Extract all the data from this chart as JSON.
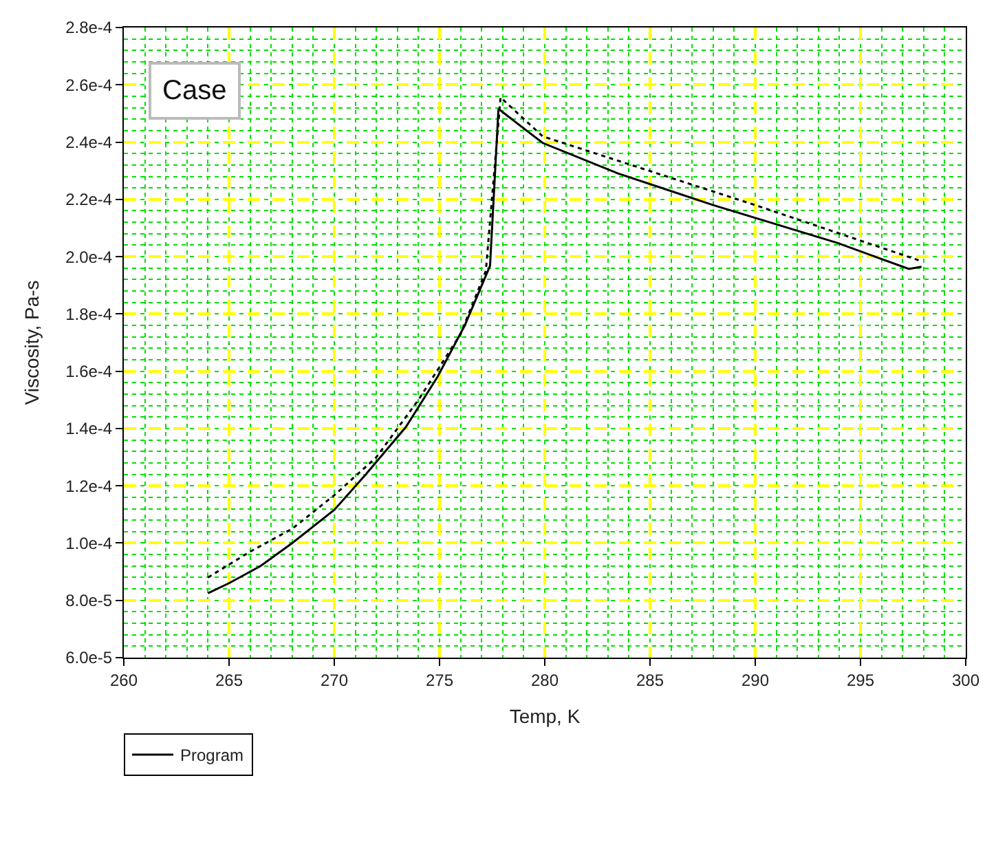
{
  "chart_data": {
    "type": "line",
    "xlabel": "Temp, K",
    "ylabel": "Viscosity, Pa-s",
    "annotations": [
      "Case"
    ],
    "xlim": [
      260,
      300
    ],
    "xticks": [
      260,
      265,
      270,
      275,
      280,
      285,
      290,
      295,
      300
    ],
    "ylim": [
      6e-05,
      0.00028
    ],
    "yticks": [
      {
        "value": 6e-05,
        "label": "6.0e-5"
      },
      {
        "value": 8e-05,
        "label": "8.0e-5"
      },
      {
        "value": 0.0001,
        "label": "1.0e-4"
      },
      {
        "value": 0.00012,
        "label": "1.2e-4"
      },
      {
        "value": 0.00014,
        "label": "1.4e-4"
      },
      {
        "value": 0.00016,
        "label": "1.6e-4"
      },
      {
        "value": 0.00018,
        "label": "1.8e-4"
      },
      {
        "value": 0.0002,
        "label": "2.0e-4"
      },
      {
        "value": 0.00022,
        "label": "2.2e-4"
      },
      {
        "value": 0.00024,
        "label": "2.4e-4"
      },
      {
        "value": 0.00026,
        "label": "2.6e-4"
      },
      {
        "value": 0.00028,
        "label": "2.8e-4"
      }
    ],
    "grid": true,
    "legend": "bottom left",
    "marker": "none",
    "series": [
      {
        "name": "Program",
        "color": "#000000",
        "line_style": "solid",
        "x": [
          264.0,
          265.0,
          266.5,
          268.0,
          270.0,
          271.5,
          273.4,
          274.9,
          276.2,
          277.4,
          277.8,
          279.9,
          283.5,
          288.0,
          293.9,
          297.3,
          297.9
        ],
        "values": [
          8.25e-05,
          8.6e-05,
          9.2e-05,
          0.0001,
          0.0001116,
          0.000124,
          0.0001405,
          0.000158,
          0.000176,
          0.0001968,
          0.0002516,
          0.0002397,
          0.000229,
          0.000218,
          0.0002048,
          0.0001957,
          0.0001965
        ]
      },
      {
        "color": "#000000",
        "line_style": "dotted",
        "x": [
          264.0,
          266.0,
          268.0,
          270.0,
          272.0,
          274.0,
          276.0,
          277.2,
          277.9,
          279.9,
          290.0,
          297.9
        ],
        "values": [
          8.8e-05,
          9.7e-05,
          0.000105,
          0.0001167,
          0.00013,
          0.00015,
          0.000173,
          0.000195,
          0.0002556,
          0.000242,
          0.000218,
          0.0001984
        ]
      }
    ]
  }
}
